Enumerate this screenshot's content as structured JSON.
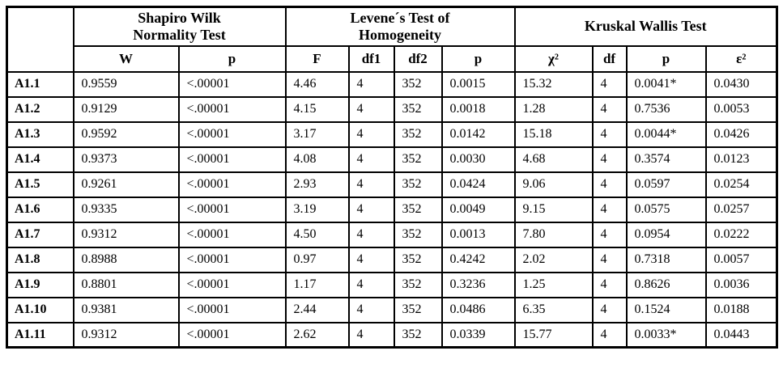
{
  "table": {
    "group_headers": [
      "Shapiro Wilk\nNormality Test",
      "Levene´s Test of\nHomogeneity",
      "Kruskal Wallis Test"
    ],
    "sub_headers": [
      "W",
      "p",
      "F",
      "df1",
      "df2",
      "p",
      "χ²",
      "df",
      "p",
      "ε²"
    ],
    "rows": [
      {
        "label": "A1.1",
        "values": [
          "0.9559",
          "<.00001",
          "4.46",
          "4",
          "352",
          "0.0015",
          "15.32",
          "4",
          "0.0041*",
          "0.0430"
        ]
      },
      {
        "label": "A1.2",
        "values": [
          "0.9129",
          "<.00001",
          "4.15",
          "4",
          "352",
          "0.0018",
          "1.28",
          "4",
          "0.7536",
          "0.0053"
        ]
      },
      {
        "label": "A1.3",
        "values": [
          "0.9592",
          "<.00001",
          "3.17",
          "4",
          "352",
          "0.0142",
          "15.18",
          "4",
          "0.0044*",
          "0.0426"
        ]
      },
      {
        "label": "A1.4",
        "values": [
          "0.9373",
          "<.00001",
          "4.08",
          "4",
          "352",
          "0.0030",
          "4.68",
          "4",
          "0.3574",
          "0.0123"
        ]
      },
      {
        "label": "A1.5",
        "values": [
          "0.9261",
          "<.00001",
          "2.93",
          "4",
          "352",
          "0.0424",
          "9.06",
          "4",
          "0.0597",
          "0.0254"
        ]
      },
      {
        "label": "A1.6",
        "values": [
          "0.9335",
          "<.00001",
          "3.19",
          "4",
          "352",
          "0.0049",
          "9.15",
          "4",
          "0.0575",
          "0.0257"
        ]
      },
      {
        "label": "A1.7",
        "values": [
          "0.9312",
          "<.00001",
          "4.50",
          "4",
          "352",
          "0.0013",
          "7.80",
          "4",
          "0.0954",
          "0.0222"
        ]
      },
      {
        "label": "A1.8",
        "values": [
          "0.8988",
          "<.00001",
          "0.97",
          "4",
          "352",
          "0.4242",
          "2.02",
          "4",
          "0.7318",
          "0.0057"
        ]
      },
      {
        "label": "A1.9",
        "values": [
          "0.8801",
          "<.00001",
          "1.17",
          "4",
          "352",
          "0.3236",
          "1.25",
          "4",
          "0.8626",
          "0.0036"
        ]
      },
      {
        "label": "A1.10",
        "values": [
          "0.9381",
          "<.00001",
          "2.44",
          "4",
          "352",
          "0.0486",
          "6.35",
          "4",
          "0.1524",
          "0.0188"
        ]
      },
      {
        "label": "A1.11",
        "values": [
          "0.9312",
          "<.00001",
          "2.62",
          "4",
          "352",
          "0.0339",
          "15.77",
          "4",
          "0.0033*",
          "0.0443"
        ]
      }
    ],
    "colors": {
      "border": "#000000",
      "text": "#000000",
      "background": "#ffffff"
    }
  }
}
